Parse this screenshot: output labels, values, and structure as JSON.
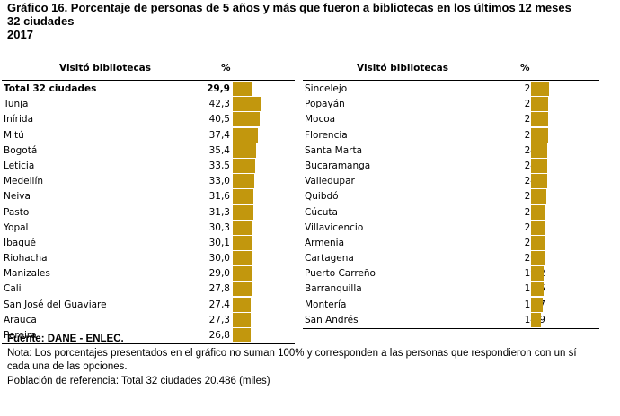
{
  "title": {
    "line1": "Gráfico 16. Porcentaje de personas de 5 años y más que fueron a bibliotecas en los últimos 12 meses",
    "line2": "32 ciudades",
    "line3": "2017"
  },
  "table_headers": {
    "col_label": "Visitó bibliotecas",
    "col_value": "%"
  },
  "chart_data": {
    "type": "bar",
    "xlim": [
      0,
      100
    ],
    "panels": [
      {
        "categories": [
          "Total 32 ciudades",
          "Tunja",
          "Inírida",
          "Mitú",
          "Bogotá",
          "Leticia",
          "Medellín",
          "Neiva",
          "Pasto",
          "Yopal",
          "Ibagué",
          "Riohacha",
          "Manizales",
          "Cali",
          "San José del Guaviare",
          "Arauca",
          "Pereira"
        ],
        "values": [
          29.9,
          42.3,
          40.5,
          37.4,
          35.4,
          33.5,
          33.0,
          31.6,
          31.3,
          30.3,
          30.1,
          30.0,
          29.0,
          27.8,
          27.4,
          27.3,
          26.8
        ],
        "labels": [
          "29,9",
          "42,3",
          "40,5",
          "37,4",
          "35,4",
          "33,5",
          "33,0",
          "31,6",
          "31,3",
          "30,3",
          "30,1",
          "30,0",
          "29,0",
          "27,8",
          "27,4",
          "27,3",
          "26,8"
        ]
      },
      {
        "categories": [
          "Sincelejo",
          "Popayán",
          "Mocoa",
          "Florencia",
          "Santa Marta",
          "Bucaramanga",
          "Valledupar",
          "Quibdó",
          "Cúcuta",
          "Villavicencio",
          "Armenia",
          "Cartagena",
          "Puerto Carreño",
          "Barranquilla",
          "Montería",
          "San Andrés"
        ],
        "values": [
          26.7,
          26.0,
          25.9,
          25.8,
          24.8,
          24.6,
          24.1,
          23.4,
          21.9,
          21.8,
          21.6,
          20.5,
          19.2,
          18.5,
          17.7,
          14.9
        ],
        "labels": [
          "26,7",
          "26,0",
          "25,9",
          "25,8",
          "24,8",
          "24,6",
          "24,1",
          "23,4",
          "21,9",
          "21,8",
          "21,6",
          "20,5",
          "19,2",
          "18,5",
          "17,7",
          "14,9"
        ]
      }
    ],
    "bar_color": "#c2970d"
  },
  "notes": {
    "source": "Fuente: DANE - ENLEC.",
    "note_line1": "Nota: Los porcentajes presentados en el gráfico no suman 100% y corresponden a las personas que respondieron con un sí",
    "note_line2": "cada una de las opciones.",
    "reference": "Población de referencia: Total 32 ciudades 20.486 (miles)"
  }
}
